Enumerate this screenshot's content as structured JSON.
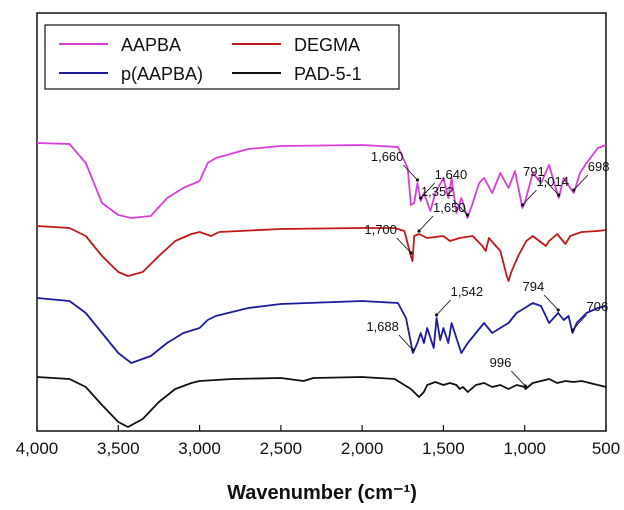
{
  "chart_data": {
    "type": "line",
    "title": "",
    "xlabel": "Wavenumber (cm⁻¹)",
    "ylabel": "",
    "xlim": [
      4000,
      500
    ],
    "x_reversed": true,
    "x_ticks": [
      4000,
      3500,
      3000,
      2500,
      2000,
      1500,
      1000,
      500
    ],
    "x_tick_labels": [
      "4,000",
      "3,500",
      "3,000",
      "2,500",
      "2,000",
      "1,500",
      "1,000",
      "500"
    ],
    "y_ticks": false,
    "grid": false,
    "legend_position": "top-left",
    "series": [
      {
        "name": "AAPBA",
        "color": "#d83fd8",
        "baseline": 0.0,
        "points": [
          [
            4000,
            0.0
          ],
          [
            3800,
            -1.0
          ],
          [
            3700,
            -20.0
          ],
          [
            3600,
            -60.0
          ],
          [
            3500,
            -72.0
          ],
          [
            3420,
            -75.0
          ],
          [
            3300,
            -73.0
          ],
          [
            3200,
            -55.0
          ],
          [
            3100,
            -45.0
          ],
          [
            3000,
            -38.0
          ],
          [
            2950,
            -20.0
          ],
          [
            2900,
            -15.0
          ],
          [
            2700,
            -6.0
          ],
          [
            2500,
            -3.0
          ],
          [
            2000,
            -2.0
          ],
          [
            1780,
            -4.0
          ],
          [
            1720,
            -25.0
          ],
          [
            1700,
            -62.0
          ],
          [
            1680,
            -60.0
          ],
          [
            1660,
            -40.0
          ],
          [
            1640,
            -58.0
          ],
          [
            1620,
            -50.0
          ],
          [
            1580,
            -68.0
          ],
          [
            1550,
            -50.0
          ],
          [
            1500,
            -35.0
          ],
          [
            1470,
            -55.0
          ],
          [
            1450,
            -35.0
          ],
          [
            1420,
            -70.0
          ],
          [
            1390,
            -55.0
          ],
          [
            1370,
            -65.0
          ],
          [
            1352,
            -75.0
          ],
          [
            1320,
            -60.0
          ],
          [
            1280,
            -40.0
          ],
          [
            1250,
            -35.0
          ],
          [
            1200,
            -50.0
          ],
          [
            1150,
            -30.0
          ],
          [
            1100,
            -45.0
          ],
          [
            1060,
            -28.0
          ],
          [
            1014,
            -65.0
          ],
          [
            1000,
            -60.0
          ],
          [
            950,
            -30.0
          ],
          [
            900,
            -40.0
          ],
          [
            850,
            -22.0
          ],
          [
            800,
            -50.0
          ],
          [
            791,
            -55.0
          ],
          [
            760,
            -35.0
          ],
          [
            720,
            -45.0
          ],
          [
            698,
            -50.0
          ],
          [
            660,
            -30.0
          ],
          [
            620,
            -20.0
          ],
          [
            550,
            -5.0
          ],
          [
            500,
            -2.0
          ]
        ]
      },
      {
        "name": "DEGMA",
        "color": "#c01818",
        "baseline": 0.0,
        "points": [
          [
            4000,
            0.0
          ],
          [
            3800,
            -2.0
          ],
          [
            3700,
            -10.0
          ],
          [
            3600,
            -30.0
          ],
          [
            3500,
            -46.0
          ],
          [
            3440,
            -50.0
          ],
          [
            3350,
            -46.0
          ],
          [
            3250,
            -30.0
          ],
          [
            3150,
            -15.0
          ],
          [
            3050,
            -8.0
          ],
          [
            3000,
            -6.0
          ],
          [
            2930,
            -10.0
          ],
          [
            2880,
            -6.0
          ],
          [
            2500,
            -3.0
          ],
          [
            2000,
            -2.0
          ],
          [
            1800,
            -2.0
          ],
          [
            1740,
            -5.0
          ],
          [
            1700,
            -30.0
          ],
          [
            1690,
            -35.0
          ],
          [
            1680,
            -10.0
          ],
          [
            1650,
            -8.0
          ],
          [
            1600,
            -12.0
          ],
          [
            1500,
            -10.0
          ],
          [
            1460,
            -15.0
          ],
          [
            1400,
            -12.0
          ],
          [
            1320,
            -10.0
          ],
          [
            1260,
            -20.0
          ],
          [
            1240,
            -25.0
          ],
          [
            1220,
            -12.0
          ],
          [
            1150,
            -25.0
          ],
          [
            1110,
            -50.0
          ],
          [
            1100,
            -55.0
          ],
          [
            1080,
            -45.0
          ],
          [
            1040,
            -30.0
          ],
          [
            990,
            -15.0
          ],
          [
            950,
            -10.0
          ],
          [
            870,
            -20.0
          ],
          [
            850,
            -15.0
          ],
          [
            800,
            -8.0
          ],
          [
            750,
            -18.0
          ],
          [
            720,
            -10.0
          ],
          [
            650,
            -6.0
          ],
          [
            550,
            -5.0
          ],
          [
            500,
            -4.0
          ]
        ]
      },
      {
        "name": "p(AAPBA)",
        "color": "#1c1c9c",
        "baseline": 0.0,
        "points": [
          [
            4000,
            0.0
          ],
          [
            3800,
            -3.0
          ],
          [
            3700,
            -15.0
          ],
          [
            3600,
            -35.0
          ],
          [
            3500,
            -55.0
          ],
          [
            3420,
            -65.0
          ],
          [
            3300,
            -58.0
          ],
          [
            3200,
            -45.0
          ],
          [
            3100,
            -35.0
          ],
          [
            3000,
            -30.0
          ],
          [
            2950,
            -22.0
          ],
          [
            2900,
            -18.0
          ],
          [
            2700,
            -10.0
          ],
          [
            2500,
            -6.0
          ],
          [
            2000,
            -3.0
          ],
          [
            1780,
            -5.0
          ],
          [
            1730,
            -20.0
          ],
          [
            1688,
            -55.0
          ],
          [
            1660,
            -45.0
          ],
          [
            1640,
            -35.0
          ],
          [
            1620,
            -45.0
          ],
          [
            1600,
            -30.0
          ],
          [
            1560,
            -50.0
          ],
          [
            1542,
            -20.0
          ],
          [
            1520,
            -42.0
          ],
          [
            1500,
            -30.0
          ],
          [
            1470,
            -45.0
          ],
          [
            1450,
            -25.0
          ],
          [
            1420,
            -40.0
          ],
          [
            1390,
            -55.0
          ],
          [
            1350,
            -45.0
          ],
          [
            1300,
            -35.0
          ],
          [
            1250,
            -25.0
          ],
          [
            1200,
            -35.0
          ],
          [
            1150,
            -30.0
          ],
          [
            1100,
            -25.0
          ],
          [
            1050,
            -15.0
          ],
          [
            1000,
            -10.0
          ],
          [
            950,
            -5.0
          ],
          [
            900,
            -8.0
          ],
          [
            850,
            -25.0
          ],
          [
            794,
            -15.0
          ],
          [
            760,
            -22.0
          ],
          [
            730,
            -18.0
          ],
          [
            706,
            -35.0
          ],
          [
            680,
            -25.0
          ],
          [
            620,
            -15.0
          ],
          [
            550,
            -10.0
          ],
          [
            500,
            -8.0
          ]
        ]
      },
      {
        "name": "PAD-5-1",
        "color": "#111111",
        "baseline": 0.0,
        "points": [
          [
            4000,
            0.0
          ],
          [
            3800,
            -2.0
          ],
          [
            3700,
            -10.0
          ],
          [
            3600,
            -28.0
          ],
          [
            3500,
            -45.0
          ],
          [
            3440,
            -50.0
          ],
          [
            3350,
            -42.0
          ],
          [
            3250,
            -25.0
          ],
          [
            3150,
            -12.0
          ],
          [
            3050,
            -6.0
          ],
          [
            3000,
            -4.0
          ],
          [
            2800,
            -2.0
          ],
          [
            2500,
            -1.0
          ],
          [
            2360,
            -4.0
          ],
          [
            2300,
            -1.0
          ],
          [
            2000,
            0.0
          ],
          [
            1800,
            -2.0
          ],
          [
            1740,
            -8.0
          ],
          [
            1700,
            -12.0
          ],
          [
            1650,
            -20.0
          ],
          [
            1620,
            -15.0
          ],
          [
            1600,
            -8.0
          ],
          [
            1550,
            -5.0
          ],
          [
            1500,
            -8.0
          ],
          [
            1460,
            -6.0
          ],
          [
            1420,
            -8.0
          ],
          [
            1400,
            -12.0
          ],
          [
            1380,
            -10.0
          ],
          [
            1350,
            -15.0
          ],
          [
            1300,
            -8.0
          ],
          [
            1250,
            -6.0
          ],
          [
            1200,
            -10.0
          ],
          [
            1150,
            -8.0
          ],
          [
            1100,
            -12.0
          ],
          [
            1050,
            -8.0
          ],
          [
            1000,
            -10.0
          ],
          [
            996,
            -12.0
          ],
          [
            950,
            -6.0
          ],
          [
            900,
            -4.0
          ],
          [
            850,
            -2.0
          ],
          [
            800,
            -6.0
          ],
          [
            750,
            -4.0
          ],
          [
            700,
            -5.0
          ],
          [
            650,
            -4.0
          ],
          [
            600,
            -6.0
          ],
          [
            550,
            -8.0
          ],
          [
            500,
            -10.0
          ]
        ]
      }
    ],
    "annotations": [
      {
        "series": "AAPBA",
        "text": "1,660",
        "x": 1660
      },
      {
        "series": "AAPBA",
        "text": "1,640",
        "x": 1640
      },
      {
        "series": "AAPBA",
        "text": "1,352",
        "x": 1352
      },
      {
        "series": "AAPBA",
        "text": "1,014",
        "x": 1014
      },
      {
        "series": "AAPBA",
        "text": "791",
        "x": 791
      },
      {
        "series": "AAPBA",
        "text": "698",
        "x": 698
      },
      {
        "series": "DEGMA",
        "text": "1,700",
        "x": 1700
      },
      {
        "series": "DEGMA",
        "text": "1,650",
        "x": 1650
      },
      {
        "series": "p(AAPBA)",
        "text": "1,688",
        "x": 1688
      },
      {
        "series": "p(AAPBA)",
        "text": "1,542",
        "x": 1542
      },
      {
        "series": "p(AAPBA)",
        "text": "794",
        "x": 794
      },
      {
        "series": "p(AAPBA)",
        "text": "706",
        "x": 706
      },
      {
        "series": "PAD-5-1",
        "text": "996",
        "x": 996
      }
    ]
  }
}
